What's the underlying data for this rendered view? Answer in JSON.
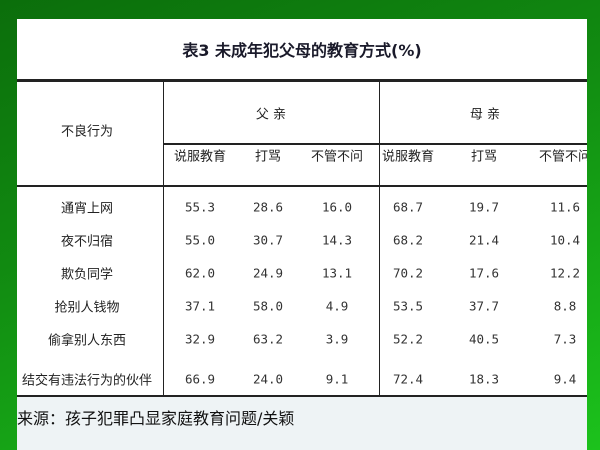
{
  "title": "表3  未成年犯父母的教育方式(%)",
  "row_header": "不良行为",
  "groups": [
    "父 亲",
    "母 亲"
  ],
  "subheaders": [
    "说服教育",
    "打骂",
    "不管不问",
    "说服教育",
    "打骂",
    "不管不问"
  ],
  "rows": [
    {
      "label": "通宵上网",
      "values": [
        "55.3",
        "28.6",
        "16.0",
        "68.7",
        "19.7",
        "11.6"
      ]
    },
    {
      "label": "夜不归宿",
      "values": [
        "55.0",
        "30.7",
        "14.3",
        "68.2",
        "21.4",
        "10.4"
      ]
    },
    {
      "label": "欺负同学",
      "values": [
        "62.0",
        "24.9",
        "13.1",
        "70.2",
        "17.6",
        "12.2"
      ]
    },
    {
      "label": "抢别人钱物",
      "values": [
        "37.1",
        "58.0",
        "4.9",
        "53.5",
        "37.7",
        "8.8"
      ]
    },
    {
      "label": "偷拿别人东西",
      "values": [
        "32.9",
        "63.2",
        "3.9",
        "52.2",
        "40.5",
        "7.3"
      ]
    },
    {
      "label": "结交有违法行为的伙伴",
      "values": [
        "66.9",
        "24.0",
        "9.1",
        "72.4",
        "18.3",
        "9.4"
      ]
    }
  ],
  "source": "来源：孩子犯罪凸显家庭教育问题/关颖"
}
